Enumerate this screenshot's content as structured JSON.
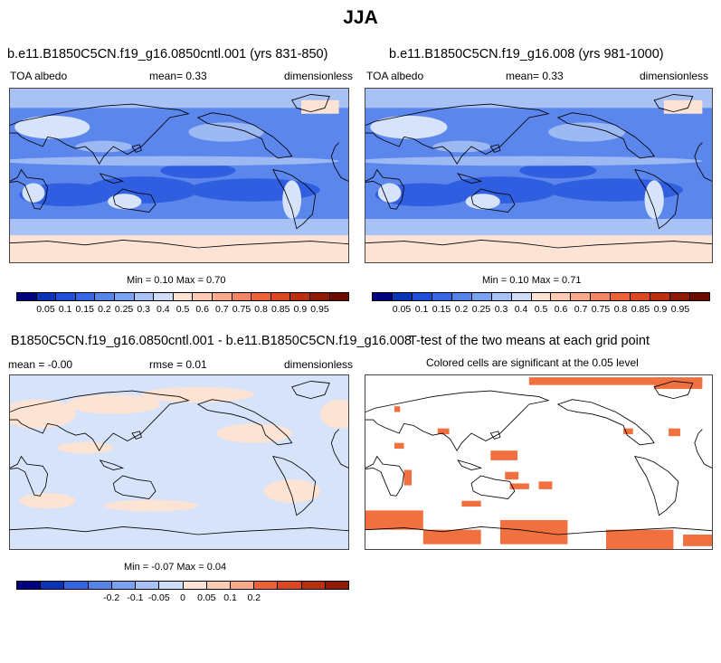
{
  "season": "JJA",
  "panels": {
    "control": {
      "title": "b.e11.B1850C5CN.f19_g16.0850cntl.001 (yrs 831-850)",
      "variable": "TOA albedo",
      "mean": "mean=   0.33",
      "units": "dimensionless",
      "minmax": "Min =   0.10 Max =   0.70"
    },
    "case": {
      "title": "b.e11.B1850C5CN.f19_g16.008 (yrs 981-1000)",
      "variable": "TOA albedo",
      "mean": "mean=   0.33",
      "units": "dimensionless",
      "minmax": "Min =   0.10 Max =   0.71"
    },
    "difference": {
      "title": "B1850C5CN.f19_g16.0850cntl.001 - b.e11.B1850C5CN.f19_g16.008",
      "mean": "mean =  -0.00",
      "rmse": "rmse =   0.01",
      "units": "dimensionless",
      "minmax": "Min =  -0.07 Max =   0.04"
    },
    "ttest": {
      "title": "T-test of the two means at each grid point",
      "subtitle": "Colored cells are significant at the 0.05 level"
    }
  },
  "colorbar_abs": {
    "colors": [
      "#00007f",
      "#0a33b5",
      "#1f4fd6",
      "#3566e0",
      "#5583e8",
      "#7ba2f0",
      "#a8c2f5",
      "#cfdcf8",
      "#fde3d3",
      "#fccbb2",
      "#f9a98a",
      "#f38563",
      "#ea6235",
      "#d9481e",
      "#b8300e",
      "#8f1a05",
      "#6e0b00"
    ],
    "labels": [
      "0.05",
      "0.1",
      "0.15",
      "0.2",
      "0.25",
      "0.3",
      "0.4",
      "0.5",
      "0.6",
      "0.7",
      "0.75",
      "0.8",
      "0.85",
      "0.9",
      "0.95"
    ]
  },
  "colorbar_diff": {
    "colors": [
      "#00007f",
      "#0a33b5",
      "#3566e0",
      "#5583e8",
      "#7ba2f0",
      "#a8c2f5",
      "#cfdcf8",
      "#fde3d3",
      "#fccbb2",
      "#f9a98a",
      "#ea6235",
      "#d9481e",
      "#b8300e",
      "#8f1a05"
    ],
    "labels": [
      "-0.2",
      "-0.1",
      "-0.05",
      "0",
      "0.05",
      "0.1",
      "0.2"
    ]
  },
  "colors": {
    "ocean_deep": "#2f5fe0",
    "ocean_mid": "#5b86ec",
    "cloud_light": "#a8c2f5",
    "land_pale": "#d7e3fa",
    "ice": "#fde3d3",
    "diff_pos": "#fde3d3",
    "diff_neg": "#d7e3fa",
    "signif": "#f0703f"
  }
}
